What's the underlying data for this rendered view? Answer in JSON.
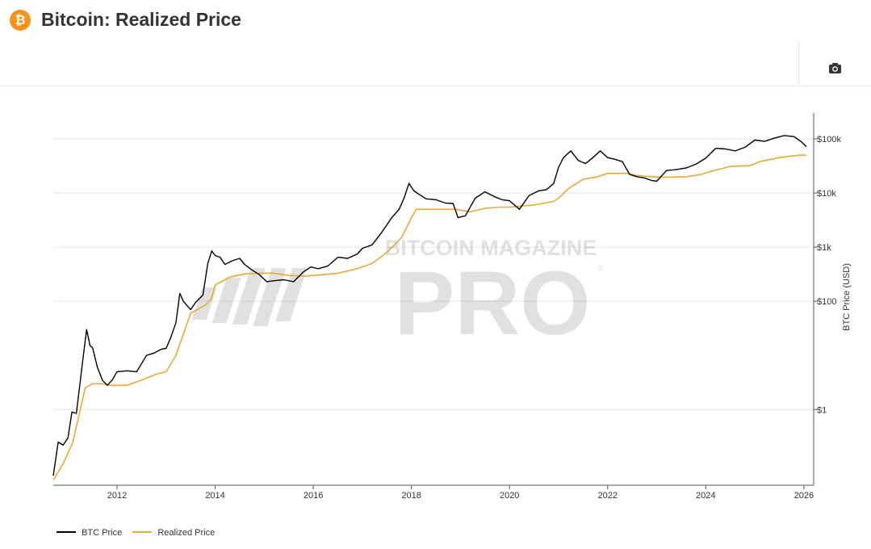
{
  "header": {
    "title": "Bitcoin: Realized Price",
    "logo_icon": "bitcoin-icon"
  },
  "toolbar": {
    "screenshot_icon": "camera-icon"
  },
  "colors": {
    "btc_price": "#000000",
    "realized_price": "#e8a93a",
    "brand": "#f7931a",
    "grid": "#e6e6e6"
  },
  "watermark": {
    "line1": "BITCOIN MAGAZINE",
    "line2": "PRO",
    "mark": "®"
  },
  "chart_data": {
    "type": "line",
    "title": "Bitcoin: Realized Price",
    "xlabel": "",
    "ylabel": "BTC Price (USD)",
    "y_scale": "log",
    "xlim": [
      2010.7,
      2026.2
    ],
    "ylim": [
      0.04,
      300000
    ],
    "x_ticks": [
      2012,
      2014,
      2016,
      2018,
      2020,
      2022,
      2024,
      2026
    ],
    "y_ticks": [
      {
        "value": 1,
        "label": "$1"
      },
      {
        "value": 100,
        "label": "$100"
      },
      {
        "value": 1000,
        "label": "$1k"
      },
      {
        "value": 10000,
        "label": "$10k"
      },
      {
        "value": 100000,
        "label": "$100k"
      }
    ],
    "legend": [
      "BTC Price",
      "Realized Price"
    ],
    "series": [
      {
        "name": "BTC Price",
        "x": [
          2010.7,
          2010.8,
          2010.9,
          2011.0,
          2011.08,
          2011.17,
          2011.3,
          2011.38,
          2011.45,
          2011.5,
          2011.6,
          2011.7,
          2011.8,
          2011.9,
          2012.0,
          2012.2,
          2012.4,
          2012.6,
          2012.75,
          2012.9,
          2013.0,
          2013.1,
          2013.2,
          2013.28,
          2013.35,
          2013.5,
          2013.6,
          2013.75,
          2013.85,
          2013.93,
          2014.0,
          2014.1,
          2014.2,
          2014.35,
          2014.5,
          2014.6,
          2014.75,
          2014.9,
          2015.05,
          2015.2,
          2015.4,
          2015.6,
          2015.8,
          2015.95,
          2016.1,
          2016.3,
          2016.5,
          2016.7,
          2016.9,
          2017.0,
          2017.2,
          2017.4,
          2017.6,
          2017.75,
          2017.85,
          2017.95,
          2018.05,
          2018.15,
          2018.3,
          2018.5,
          2018.7,
          2018.85,
          2018.95,
          2019.1,
          2019.3,
          2019.5,
          2019.7,
          2019.85,
          2020.0,
          2020.2,
          2020.4,
          2020.6,
          2020.75,
          2020.9,
          2021.0,
          2021.1,
          2021.25,
          2021.4,
          2021.55,
          2021.7,
          2021.85,
          2022.0,
          2022.15,
          2022.3,
          2022.45,
          2022.6,
          2022.75,
          2022.9,
          2023.0,
          2023.2,
          2023.4,
          2023.6,
          2023.8,
          2024.0,
          2024.2,
          2024.4,
          2024.6,
          2024.8,
          2025.0,
          2025.2,
          2025.4,
          2025.6,
          2025.8,
          2025.95,
          2026.05
        ],
        "y": [
          0.06,
          0.25,
          0.22,
          0.3,
          0.9,
          0.85,
          8,
          30,
          15,
          14,
          6,
          3.5,
          2.8,
          3.5,
          5,
          5.2,
          5,
          10,
          11,
          13,
          13.5,
          22,
          40,
          140,
          100,
          70,
          95,
          130,
          500,
          850,
          700,
          650,
          480,
          560,
          620,
          480,
          380,
          310,
          230,
          240,
          250,
          230,
          350,
          430,
          400,
          450,
          650,
          620,
          750,
          950,
          1100,
          1900,
          3500,
          5000,
          8000,
          15000,
          11000,
          9500,
          7800,
          7500,
          6500,
          6400,
          3500,
          3800,
          8000,
          10500,
          8500,
          7500,
          7200,
          5000,
          9000,
          11000,
          11500,
          15000,
          30000,
          45000,
          60000,
          40000,
          35000,
          45000,
          60000,
          45000,
          42000,
          38000,
          22000,
          20000,
          19000,
          17000,
          16500,
          26000,
          27000,
          29000,
          34000,
          44000,
          67000,
          65000,
          60000,
          70000,
          95000,
          90000,
          103000,
          115000,
          110000,
          88000,
          72000
        ]
      },
      {
        "name": "Realized Price",
        "x": [
          2010.7,
          2010.9,
          2011.1,
          2011.35,
          2011.5,
          2011.7,
          2011.9,
          2012.2,
          2012.5,
          2012.8,
          2013.0,
          2013.2,
          2013.5,
          2013.8,
          2013.92,
          2014.0,
          2014.3,
          2014.6,
          2014.9,
          2015.2,
          2015.5,
          2015.8,
          2016.0,
          2016.5,
          2016.9,
          2017.2,
          2017.5,
          2017.8,
          2018.0,
          2018.1,
          2018.5,
          2018.9,
          2019.2,
          2019.5,
          2019.8,
          2020.0,
          2020.5,
          2020.9,
          2021.0,
          2021.2,
          2021.5,
          2021.8,
          2022.0,
          2022.4,
          2022.6,
          2022.9,
          2023.2,
          2023.6,
          2023.9,
          2024.1,
          2024.5,
          2024.9,
          2025.1,
          2025.5,
          2025.9,
          2026.05
        ],
        "y": [
          0.05,
          0.1,
          0.25,
          2.5,
          3.0,
          3.0,
          2.8,
          2.8,
          3.5,
          4.5,
          5.0,
          10,
          60,
          85,
          110,
          200,
          280,
          320,
          330,
          330,
          300,
          290,
          300,
          330,
          400,
          500,
          800,
          1500,
          3500,
          5000,
          5000,
          5000,
          4500,
          5200,
          5500,
          5500,
          6000,
          7000,
          8000,
          12000,
          18000,
          20000,
          23000,
          23000,
          21000,
          20000,
          19500,
          20000,
          22000,
          25000,
          31000,
          32000,
          38000,
          45000,
          50000,
          50000
        ]
      }
    ]
  }
}
